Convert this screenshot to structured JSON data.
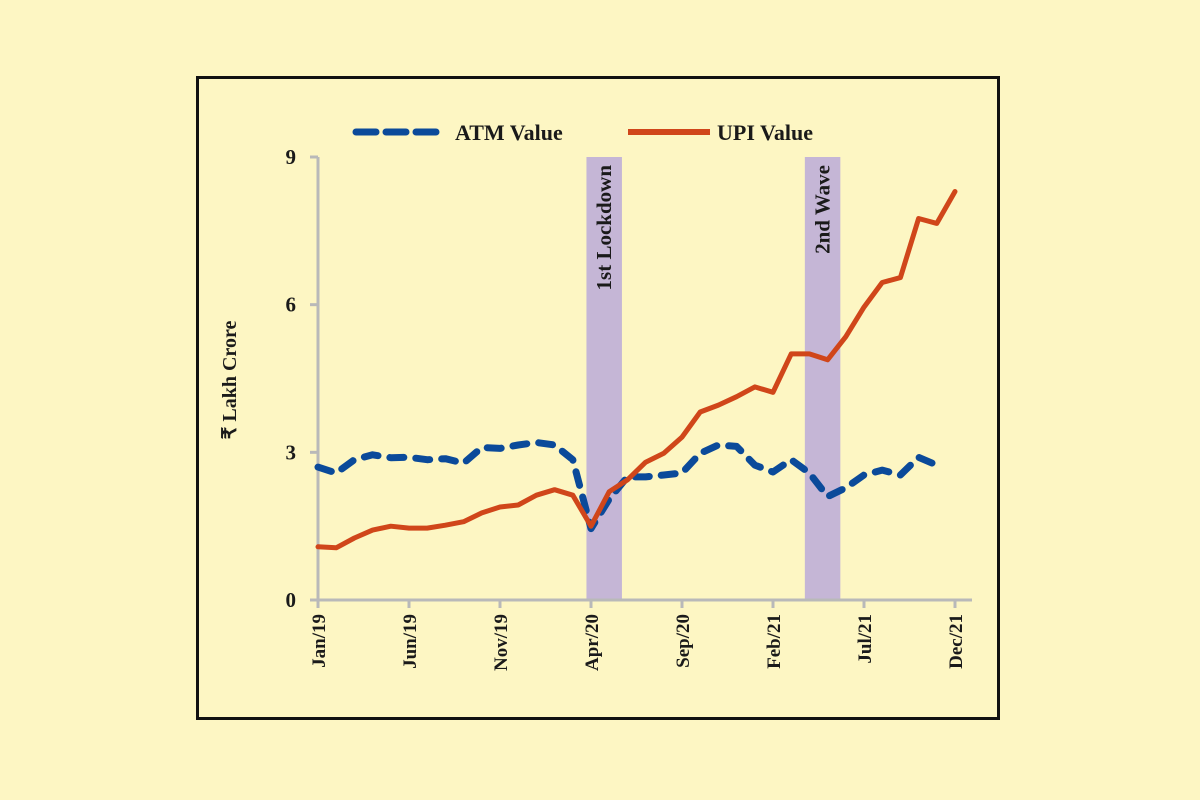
{
  "chart_data": {
    "type": "line",
    "title": "",
    "xlabel": "",
    "ylabel": "₹ Lakh Crore",
    "ylim": [
      0,
      9
    ],
    "yticks": [
      "0",
      "3",
      "6",
      "9"
    ],
    "grid": false,
    "legend_position": "top",
    "x": [
      "Jan/19",
      "Feb/19",
      "Mar/19",
      "Apr/19",
      "May/19",
      "Jun/19",
      "Jul/19",
      "Aug/19",
      "Sep/19",
      "Oct/19",
      "Nov/19",
      "Dec/19",
      "Jan/20",
      "Feb/20",
      "Mar/20",
      "Apr/20",
      "May/20",
      "Jun/20",
      "Jul/20",
      "Aug/20",
      "Sep/20",
      "Oct/20",
      "Nov/20",
      "Dec/20",
      "Jan/21",
      "Feb/21",
      "Mar/21",
      "Apr/21",
      "May/21",
      "Jun/21",
      "Jul/21",
      "Aug/21",
      "Sep/21",
      "Oct/21",
      "Nov/21",
      "Dec/21"
    ],
    "xtick_labels": [
      "Jan/19",
      "Jun/19",
      "Nov/19",
      "Apr/20",
      "Sep/20",
      "Feb/21",
      "Jul/21",
      "Dec/21"
    ],
    "series": [
      {
        "name": "ATM Value",
        "color": "#0b4a9a",
        "style": "dashed",
        "values": [
          2.7,
          2.58,
          2.85,
          2.95,
          2.89,
          2.9,
          2.85,
          2.87,
          2.78,
          3.1,
          3.08,
          3.15,
          3.2,
          3.15,
          2.85,
          1.45,
          2.05,
          2.5,
          2.5,
          2.54,
          2.58,
          2.98,
          3.15,
          3.12,
          2.74,
          2.6,
          2.85,
          2.58,
          2.1,
          2.28,
          2.54,
          2.64,
          2.54,
          2.9,
          2.74,
          null
        ]
      },
      {
        "name": "UPI Value",
        "color": "#d0461a",
        "style": "solid",
        "values": [
          1.08,
          1.06,
          1.26,
          1.42,
          1.5,
          1.46,
          1.46,
          1.52,
          1.59,
          1.77,
          1.89,
          1.93,
          2.13,
          2.24,
          2.13,
          1.5,
          2.2,
          2.44,
          2.8,
          2.98,
          3.31,
          3.82,
          3.96,
          4.13,
          4.33,
          4.22,
          5.0,
          5.0,
          4.88,
          5.35,
          5.95,
          6.45,
          6.55,
          7.75,
          7.65,
          8.3
        ]
      }
    ],
    "bands": [
      {
        "label": "1st Lockdown",
        "start": "Apr/20",
        "end": "Jun/20",
        "color": "#c5b6d6"
      },
      {
        "label": "2nd Wave",
        "start": "Apr/21",
        "end": "Jun/21",
        "color": "#c5b6d6"
      }
    ]
  }
}
